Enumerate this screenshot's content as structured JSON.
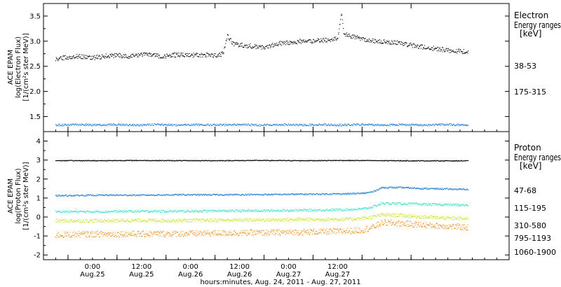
{
  "chart_data": [
    {
      "type": "scatter",
      "ylabel_lines": [
        "ACE EPAM",
        "log(Electron Flux)",
        "[1/(cm²s ster MeV)]"
      ],
      "ylim": [
        1.2,
        3.75
      ],
      "yticks": [
        "1.5",
        "2.0",
        "2.5",
        "3.0",
        "3.5"
      ],
      "ytick_values": [
        1.5,
        2.0,
        2.5,
        3.0,
        3.5
      ],
      "legend_title_lines": [
        "Electron",
        "Energy ranges",
        "[keV]"
      ],
      "series": [
        {
          "name": "38-53",
          "color": "#000000",
          "points": [
            [
              0,
              2.65
            ],
            [
              6,
              2.68
            ],
            [
              12,
              2.7
            ],
            [
              18,
              2.67
            ],
            [
              24,
              2.7
            ],
            [
              30,
              2.72
            ],
            [
              36,
              2.7
            ],
            [
              42,
              2.74
            ],
            [
              48,
              2.72
            ],
            [
              54,
              2.7
            ],
            [
              60,
              2.73
            ],
            [
              66,
              2.72
            ],
            [
              72,
              2.72
            ],
            [
              78,
              2.72
            ],
            [
              82,
              2.75
            ],
            [
              84,
              3.1
            ],
            [
              87,
              2.95
            ],
            [
              90,
              2.92
            ],
            [
              96,
              2.9
            ],
            [
              102,
              2.88
            ],
            [
              108,
              2.95
            ],
            [
              114,
              2.97
            ],
            [
              120,
              3.0
            ],
            [
              126,
              3.0
            ],
            [
              132,
              3.02
            ],
            [
              138,
              3.05
            ],
            [
              140,
              3.55
            ],
            [
              141,
              3.15
            ],
            [
              144,
              3.1
            ],
            [
              150,
              3.05
            ],
            [
              156,
              3.0
            ],
            [
              162,
              2.98
            ],
            [
              168,
              2.97
            ],
            [
              174,
              2.92
            ],
            [
              180,
              2.88
            ],
            [
              186,
              2.85
            ],
            [
              192,
              2.82
            ],
            [
              198,
              2.8
            ],
            [
              202,
              2.78
            ]
          ]
        },
        {
          "name": "175-315",
          "color": "#1f7ed8",
          "points": [
            [
              0,
              1.33
            ],
            [
              10,
              1.34
            ],
            [
              20,
              1.33
            ],
            [
              30,
              1.34
            ],
            [
              40,
              1.33
            ],
            [
              50,
              1.34
            ],
            [
              60,
              1.33
            ],
            [
              70,
              1.34
            ],
            [
              80,
              1.33
            ],
            [
              90,
              1.34
            ],
            [
              100,
              1.33
            ],
            [
              110,
              1.34
            ],
            [
              120,
              1.33
            ],
            [
              130,
              1.34
            ],
            [
              140,
              1.33
            ],
            [
              150,
              1.34
            ],
            [
              160,
              1.33
            ],
            [
              170,
              1.34
            ],
            [
              180,
              1.33
            ],
            [
              190,
              1.34
            ],
            [
              202,
              1.33
            ]
          ]
        }
      ]
    },
    {
      "type": "scatter",
      "ylabel_lines": [
        "ACE EPAM",
        "log(Proton Flux)",
        "[1/(cm²s ster MeV)]"
      ],
      "ylim": [
        -2.25,
        4.5
      ],
      "yticks": [
        "-2",
        "-1",
        "0",
        "1",
        "2",
        "3",
        "4"
      ],
      "ytick_values": [
        -2,
        -1,
        0,
        1,
        2,
        3,
        4
      ],
      "legend_title_lines": [
        "Proton",
        "Energy ranges",
        "[keV]"
      ],
      "series": [
        {
          "name": "47-68",
          "color": "#000000",
          "points": [
            [
              0,
              2.97
            ],
            [
              20,
              2.97
            ],
            [
              40,
              2.98
            ],
            [
              60,
              2.97
            ],
            [
              80,
              2.97
            ],
            [
              100,
              2.98
            ],
            [
              120,
              2.97
            ],
            [
              140,
              2.98
            ],
            [
              160,
              2.97
            ],
            [
              180,
              2.96
            ],
            [
              202,
              2.96
            ]
          ]
        },
        {
          "name": "115-195",
          "color": "#1f7ed8",
          "points": [
            [
              0,
              1.12
            ],
            [
              20,
              1.15
            ],
            [
              40,
              1.15
            ],
            [
              60,
              1.17
            ],
            [
              80,
              1.17
            ],
            [
              100,
              1.18
            ],
            [
              120,
              1.2
            ],
            [
              140,
              1.22
            ],
            [
              150,
              1.24
            ],
            [
              155,
              1.32
            ],
            [
              160,
              1.55
            ],
            [
              170,
              1.55
            ],
            [
              180,
              1.5
            ],
            [
              190,
              1.48
            ],
            [
              202,
              1.45
            ]
          ]
        },
        {
          "name": "310-580",
          "color": "#33e0c8",
          "points": [
            [
              0,
              0.28
            ],
            [
              20,
              0.28
            ],
            [
              40,
              0.3
            ],
            [
              60,
              0.3
            ],
            [
              80,
              0.32
            ],
            [
              100,
              0.33
            ],
            [
              120,
              0.35
            ],
            [
              140,
              0.38
            ],
            [
              150,
              0.42
            ],
            [
              155,
              0.52
            ],
            [
              160,
              0.72
            ],
            [
              170,
              0.7
            ],
            [
              180,
              0.67
            ],
            [
              190,
              0.65
            ],
            [
              202,
              0.62
            ]
          ]
        },
        {
          "name": "795-1193",
          "color": "#c8e21e",
          "points": [
            [
              0,
              -0.2
            ],
            [
              20,
              -0.2
            ],
            [
              40,
              -0.18
            ],
            [
              60,
              -0.18
            ],
            [
              80,
              -0.17
            ],
            [
              100,
              -0.15
            ],
            [
              120,
              -0.13
            ],
            [
              140,
              -0.12
            ],
            [
              150,
              -0.08
            ],
            [
              155,
              0.0
            ],
            [
              160,
              0.12
            ],
            [
              170,
              0.08
            ],
            [
              180,
              0.0
            ],
            [
              190,
              -0.05
            ],
            [
              202,
              -0.1
            ]
          ]
        },
        {
          "name": "1060-1900",
          "color": "#f08a0f",
          "points": [
            [
              0,
              -0.95
            ],
            [
              20,
              -0.9
            ],
            [
              40,
              -0.9
            ],
            [
              60,
              -0.88
            ],
            [
              80,
              -0.85
            ],
            [
              100,
              -0.83
            ],
            [
              120,
              -0.8
            ],
            [
              140,
              -0.75
            ],
            [
              150,
              -0.7
            ],
            [
              155,
              -0.55
            ],
            [
              160,
              -0.3
            ],
            [
              170,
              -0.35
            ],
            [
              180,
              -0.42
            ],
            [
              190,
              -0.48
            ],
            [
              202,
              -0.55
            ]
          ]
        }
      ]
    }
  ],
  "x_axis": {
    "range_hours": [
      -6,
      222
    ],
    "tick_hours": [
      6,
      30,
      54,
      78,
      102,
      126,
      150,
      174
    ],
    "tick_labels": [
      {
        "time": "0:00",
        "day": "Aug.25"
      },
      {
        "time": "12:00",
        "day": "Aug.25"
      },
      {
        "time": "0:00",
        "day": "Aug.26"
      },
      {
        "time": "12:00",
        "day": "Aug.26"
      },
      {
        "time": "0:00",
        "day": "Aug.27"
      },
      {
        "time": "12:00",
        "day": "Aug.27"
      }
    ],
    "label_tick_hours": [
      18,
      42,
      66,
      90,
      114,
      138
    ],
    "xlabel": "hours:minutes, Aug. 24, 2011 - Aug. 27, 2011"
  }
}
